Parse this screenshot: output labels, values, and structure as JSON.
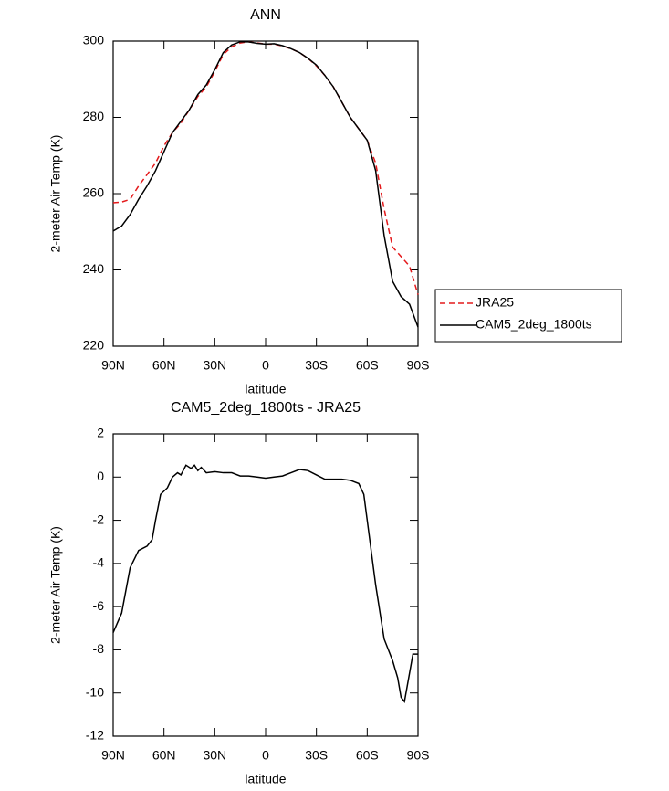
{
  "chart_data": [
    {
      "type": "line",
      "title": "ANN",
      "xlabel": "latitude",
      "ylabel": "2-meter Air Temp (K)",
      "x": [
        90,
        85,
        80,
        75,
        70,
        65,
        60,
        55,
        50,
        45,
        40,
        35,
        30,
        25,
        20,
        15,
        10,
        5,
        0,
        -5,
        -10,
        -15,
        -20,
        -25,
        -30,
        -35,
        -40,
        -45,
        -50,
        -55,
        -60,
        -65,
        -70,
        -75,
        -80,
        -85,
        -90
      ],
      "series": [
        {
          "name": "JRA25",
          "color": "#e41a1c",
          "dash": true,
          "values": [
            257.6,
            257.8,
            258.5,
            262,
            265,
            268,
            272.5,
            276,
            278.5,
            282,
            285.5,
            288,
            292,
            296.5,
            298.5,
            299.5,
            299.8,
            299.5,
            299.2,
            299.2,
            298.7,
            298,
            297,
            295.5,
            293.5,
            291,
            288,
            284,
            280,
            277,
            274,
            268,
            256,
            246,
            243.5,
            241,
            233.5
          ]
        },
        {
          "name": "CAM5_2deg_1800ts",
          "color": "#000000",
          "dash": false,
          "values": [
            250.2,
            251.5,
            254.5,
            258.5,
            262,
            266,
            271,
            276,
            279,
            282,
            286,
            288.5,
            292.5,
            297,
            299,
            299.8,
            299.8,
            299.4,
            299.2,
            299.3,
            298.8,
            298,
            297,
            295.5,
            293.7,
            291,
            288,
            284,
            280,
            277,
            274,
            266,
            249,
            237,
            233,
            231,
            225
          ]
        }
      ],
      "xlim": [
        90,
        -90
      ],
      "xticks": [
        {
          "value": 90,
          "label": "90N"
        },
        {
          "value": 60,
          "label": "60N"
        },
        {
          "value": 30,
          "label": "30N"
        },
        0,
        {
          "value": -30,
          "label": "30S"
        },
        {
          "value": -60,
          "label": "60S"
        },
        {
          "value": -90,
          "label": "90S"
        }
      ],
      "ylim": [
        220,
        300
      ],
      "yticks": [
        220,
        240,
        260,
        280,
        300
      ],
      "legend": "right"
    },
    {
      "type": "line",
      "title": "CAM5_2deg_1800ts - JRA25",
      "xlabel": "latitude",
      "ylabel": "2-meter Air Temp (K)",
      "x": [
        90,
        85,
        80,
        75,
        70,
        67,
        65,
        62,
        58,
        55,
        52,
        50,
        47,
        44,
        42,
        40,
        38,
        35,
        30,
        25,
        20,
        15,
        10,
        5,
        0,
        -5,
        -10,
        -15,
        -20,
        -25,
        -30,
        -35,
        -40,
        -45,
        -50,
        -55,
        -58,
        -60,
        -65,
        -70,
        -75,
        -78,
        -80,
        -82,
        -87,
        -90
      ],
      "series": [
        {
          "color": "#000000",
          "values": [
            -7.2,
            -6.3,
            -4.2,
            -3.4,
            -3.2,
            -2.9,
            -2,
            -0.8,
            -0.5,
            0,
            0.2,
            0.1,
            0.55,
            0.4,
            0.55,
            0.3,
            0.45,
            0.2,
            0.25,
            0.2,
            0.2,
            0.05,
            0.05,
            0,
            -0.05,
            0,
            0.05,
            0.2,
            0.35,
            0.3,
            0.1,
            -0.1,
            -0.1,
            -0.1,
            -0.15,
            -0.3,
            -0.8,
            -2,
            -5,
            -7.5,
            -8.5,
            -9.3,
            -10.2,
            -10.4,
            -8.2,
            -8.2
          ]
        }
      ],
      "xlim": [
        90,
        -90
      ],
      "xticks": [
        {
          "value": 90,
          "label": "90N"
        },
        {
          "value": 60,
          "label": "60N"
        },
        {
          "value": 30,
          "label": "30N"
        },
        0,
        {
          "value": -30,
          "label": "30S"
        },
        {
          "value": -60,
          "label": "60S"
        },
        {
          "value": -90,
          "label": "90S"
        }
      ],
      "ylim": [
        -12,
        2
      ],
      "yticks": [
        -12,
        -10,
        -8,
        -6,
        -4,
        -2,
        0,
        2
      ]
    }
  ]
}
